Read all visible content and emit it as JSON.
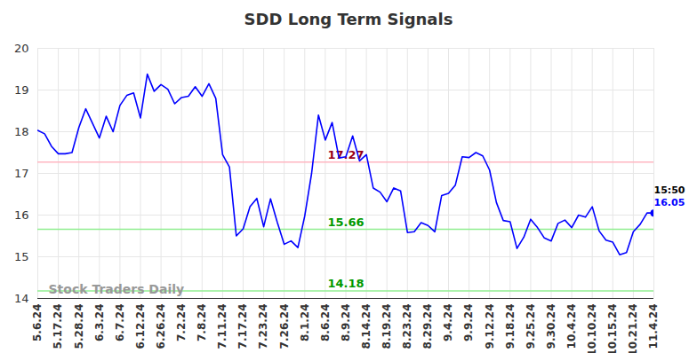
{
  "chart_data": {
    "type": "line",
    "title": "SDD Long Term Signals",
    "categories": [
      "5.6.24",
      null,
      null,
      "5.17.24",
      null,
      null,
      "5.28.24",
      null,
      null,
      "6.3.24",
      null,
      null,
      "6.7.24",
      null,
      null,
      "6.12.24",
      null,
      null,
      "6.26.24",
      null,
      null,
      "7.2.24",
      null,
      null,
      "7.8.24",
      null,
      null,
      "7.11.24",
      null,
      null,
      "7.17.24",
      null,
      null,
      "7.23.24",
      null,
      null,
      "7.26.24",
      null,
      null,
      "8.1.24",
      null,
      null,
      "8.6.24",
      null,
      null,
      "8.9.24",
      null,
      null,
      "8.14.24",
      null,
      null,
      "8.19.24",
      null,
      null,
      "8.23.24",
      null,
      null,
      "8.29.24",
      null,
      null,
      "9.4.24",
      null,
      null,
      "9.9.24",
      null,
      null,
      "9.12.24",
      null,
      null,
      "9.18.24",
      null,
      null,
      "9.25.24",
      null,
      null,
      "9.30.24",
      null,
      null,
      "10.4.24",
      null,
      null,
      "10.10.24",
      null,
      null,
      "10.15.24",
      null,
      null,
      "10.21.24",
      null,
      null,
      "11.4.24"
    ],
    "series": [
      {
        "color": "#0000ff",
        "values": [
          18.03,
          17.95,
          17.65,
          17.47,
          17.47,
          17.5,
          18.1,
          18.55,
          18.2,
          17.85,
          18.37,
          18.0,
          18.63,
          18.87,
          18.93,
          18.33,
          19.38,
          18.97,
          19.13,
          19.02,
          18.67,
          18.82,
          18.85,
          19.08,
          18.85,
          19.15,
          18.8,
          17.45,
          17.15,
          15.5,
          15.67,
          16.2,
          16.4,
          15.72,
          16.39,
          15.82,
          15.3,
          15.38,
          15.22,
          15.98,
          17.0,
          18.4,
          17.8,
          18.22,
          17.37,
          17.4,
          17.9,
          17.3,
          17.45,
          16.65,
          16.55,
          16.32,
          16.65,
          16.58,
          15.58,
          15.6,
          15.82,
          15.75,
          15.6,
          16.47,
          16.52,
          16.72,
          17.4,
          17.38,
          17.5,
          17.42,
          17.08,
          16.3,
          15.87,
          15.84,
          15.2,
          15.47,
          15.9,
          15.7,
          15.45,
          15.38,
          15.8,
          15.88,
          15.7,
          16.0,
          15.95,
          16.2,
          15.62,
          15.4,
          15.35,
          15.05,
          15.1,
          15.6,
          15.78,
          16.05,
          16.05
        ]
      }
    ],
    "ylim": [
      14,
      20
    ],
    "yticks": [
      14,
      15,
      16,
      17,
      18,
      19,
      20
    ],
    "grid": true,
    "hlines": [
      {
        "value": 17.27,
        "color": "#ffb6c1"
      },
      {
        "value": 15.66,
        "color": "#90ee90"
      },
      {
        "value": 14.18,
        "color": "#90ee90"
      }
    ],
    "last_time": "15:50",
    "watermark": "Stock Traders Daily"
  }
}
